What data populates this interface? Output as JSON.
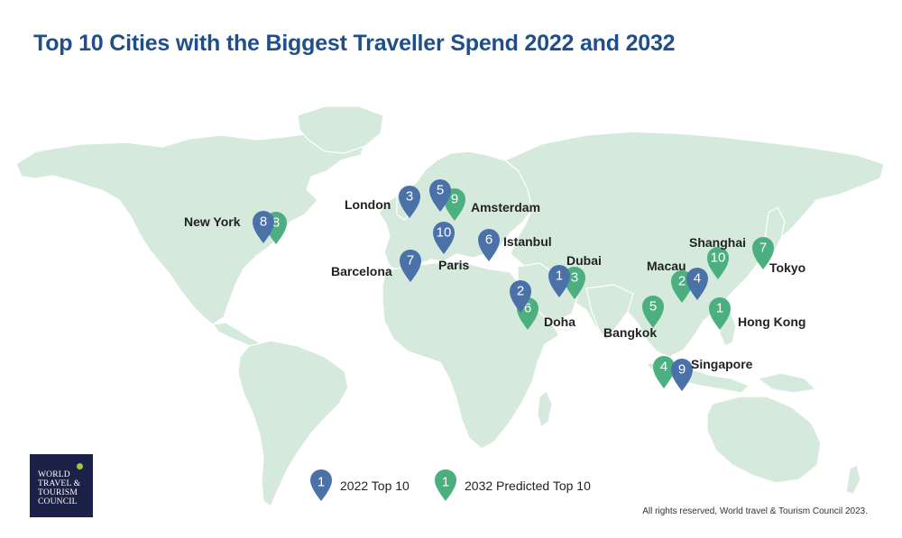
{
  "title": "Top 10 Cities with the Biggest Traveller Spend 2022 and 2032",
  "colors": {
    "pin_2022": "#4a71a8",
    "pin_2032": "#4caf80",
    "land": "#d5eadc",
    "title": "#1f4f8b"
  },
  "pins_2022": [
    {
      "city": "New York",
      "rank": "8"
    },
    {
      "city": "London",
      "rank": "3"
    },
    {
      "city": "Amsterdam",
      "rank": "5"
    },
    {
      "city": "Paris",
      "rank": "10"
    },
    {
      "city": "Barcelona",
      "rank": "7"
    },
    {
      "city": "Istanbul",
      "rank": "6"
    },
    {
      "city": "Dubai",
      "rank": "1"
    },
    {
      "city": "Doha",
      "rank": "2"
    },
    {
      "city": "Macau",
      "rank": "4"
    },
    {
      "city": "Singapore",
      "rank": "9"
    }
  ],
  "pins_2032": [
    {
      "city": "New York",
      "rank": "8"
    },
    {
      "city": "Amsterdam",
      "rank": "9"
    },
    {
      "city": "Dubai",
      "rank": "3"
    },
    {
      "city": "Doha",
      "rank": "6"
    },
    {
      "city": "Shanghai",
      "rank": "10"
    },
    {
      "city": "Tokyo",
      "rank": "7"
    },
    {
      "city": "Macau",
      "rank": "2"
    },
    {
      "city": "Hong Kong",
      "rank": "1"
    },
    {
      "city": "Bangkok",
      "rank": "5"
    },
    {
      "city": "Singapore",
      "rank": "4"
    }
  ],
  "city_labels": [
    "New York",
    "London",
    "Amsterdam",
    "Paris",
    "Barcelona",
    "Istanbul",
    "Dubai",
    "Doha",
    "Shanghai",
    "Macau",
    "Tokyo",
    "Hong Kong",
    "Bangkok",
    "Singapore"
  ],
  "legend": [
    {
      "icon_number": "1",
      "label": "2022 Top 10",
      "series": "2022"
    },
    {
      "icon_number": "1",
      "label": "2032 Predicted Top 10",
      "series": "2032"
    }
  ],
  "logo_text": [
    "WORLD",
    "TRAVEL &",
    "TOURISM",
    "COUNCIL"
  ],
  "copyright": "All rights reserved, World travel & Tourism Council 2023."
}
